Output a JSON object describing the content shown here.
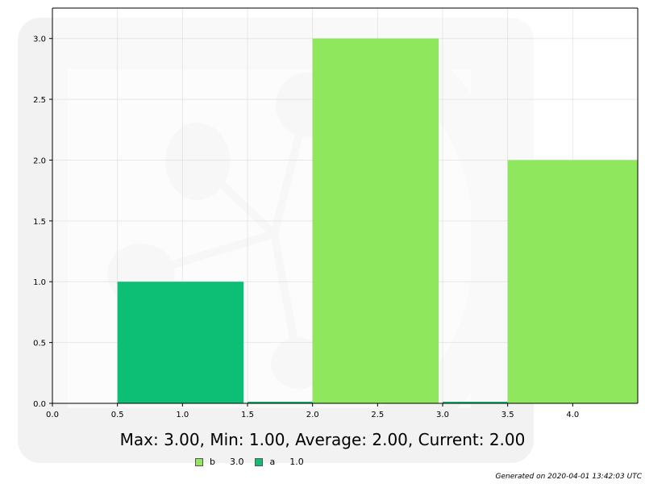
{
  "chart_data": {
    "type": "bar",
    "xlim": [
      0.0,
      4.5
    ],
    "ylim": [
      0.0,
      3.25
    ],
    "xticks": [
      "0.0",
      "0.5",
      "1.0",
      "1.5",
      "2.0",
      "2.5",
      "3.0",
      "3.5",
      "4.0"
    ],
    "yticks": [
      "0.0",
      "0.5",
      "1.0",
      "1.5",
      "2.0",
      "2.5",
      "3.0"
    ],
    "grid": true,
    "bars": [
      {
        "series": "a",
        "x_start": 0.5,
        "x_end": 1.47,
        "value": 1.0
      },
      {
        "series": "b",
        "x_start": 2.0,
        "x_end": 2.97,
        "value": 3.0
      },
      {
        "series": "b",
        "x_start": 3.5,
        "x_end": 4.5,
        "value": 2.0
      }
    ],
    "series": [
      {
        "name": "b",
        "color": "#8fe75e",
        "values": [
          3.0,
          2.0
        ]
      },
      {
        "name": "a",
        "color": "#0cbf74",
        "values": [
          1.0
        ]
      }
    ]
  },
  "stats_text": "Max: 3.00, Min: 1.00, Average: 2.00, Current: 2.00",
  "legend": [
    {
      "name": "b",
      "value": "3.0",
      "color": "#8fe75e"
    },
    {
      "name": "a",
      "value": "1.0",
      "color": "#0cbf74"
    }
  ],
  "footer": "Generated on 2020-04-01 13:42:03 UTC"
}
